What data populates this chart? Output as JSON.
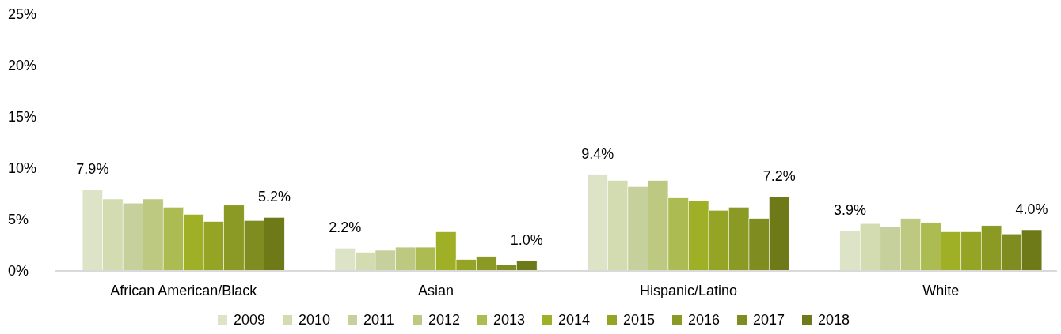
{
  "chart_data": {
    "type": "bar",
    "categories": [
      "African American/Black",
      "Asian",
      "Hispanic/Latino",
      "White"
    ],
    "ylim": [
      0,
      25
    ],
    "yticks": [
      {
        "value": 0,
        "label": "0%"
      },
      {
        "value": 5,
        "label": "5%"
      },
      {
        "value": 10,
        "label": "10%"
      },
      {
        "value": 15,
        "label": "15%"
      },
      {
        "value": 20,
        "label": "20%"
      },
      {
        "value": 25,
        "label": "25%"
      }
    ],
    "grid": false,
    "legend": "bottom",
    "series": [
      {
        "name": "2009",
        "color": "#dde3c6",
        "values": [
          7.9,
          2.2,
          9.4,
          3.9
        ],
        "value_labels": [
          "7.9%",
          "2.2%",
          "9.4%",
          "3.9%"
        ]
      },
      {
        "name": "2010",
        "color": "#d3dbb0",
        "values": [
          7.0,
          1.8,
          8.8,
          4.6
        ]
      },
      {
        "name": "2011",
        "color": "#c6d09c",
        "values": [
          6.6,
          2.0,
          8.2,
          4.3
        ]
      },
      {
        "name": "2012",
        "color": "#bdc880",
        "values": [
          7.0,
          2.3,
          8.8,
          5.1
        ]
      },
      {
        "name": "2013",
        "color": "#adbc52",
        "values": [
          6.2,
          2.3,
          7.1,
          4.7
        ]
      },
      {
        "name": "2014",
        "color": "#a0b026",
        "values": [
          5.5,
          3.8,
          6.8,
          3.8
        ]
      },
      {
        "name": "2015",
        "color": "#96a426",
        "values": [
          4.8,
          1.1,
          5.9,
          3.8
        ]
      },
      {
        "name": "2016",
        "color": "#8a9a24",
        "values": [
          6.4,
          1.4,
          6.2,
          4.4
        ]
      },
      {
        "name": "2017",
        "color": "#7e8c20",
        "values": [
          4.9,
          0.6,
          5.1,
          3.6
        ]
      },
      {
        "name": "2018",
        "color": "#6e7a18",
        "values": [
          5.2,
          1.0,
          7.2,
          4.0
        ],
        "value_labels": [
          "5.2%",
          "1.0%",
          "7.2%",
          "4.0%"
        ]
      }
    ]
  }
}
